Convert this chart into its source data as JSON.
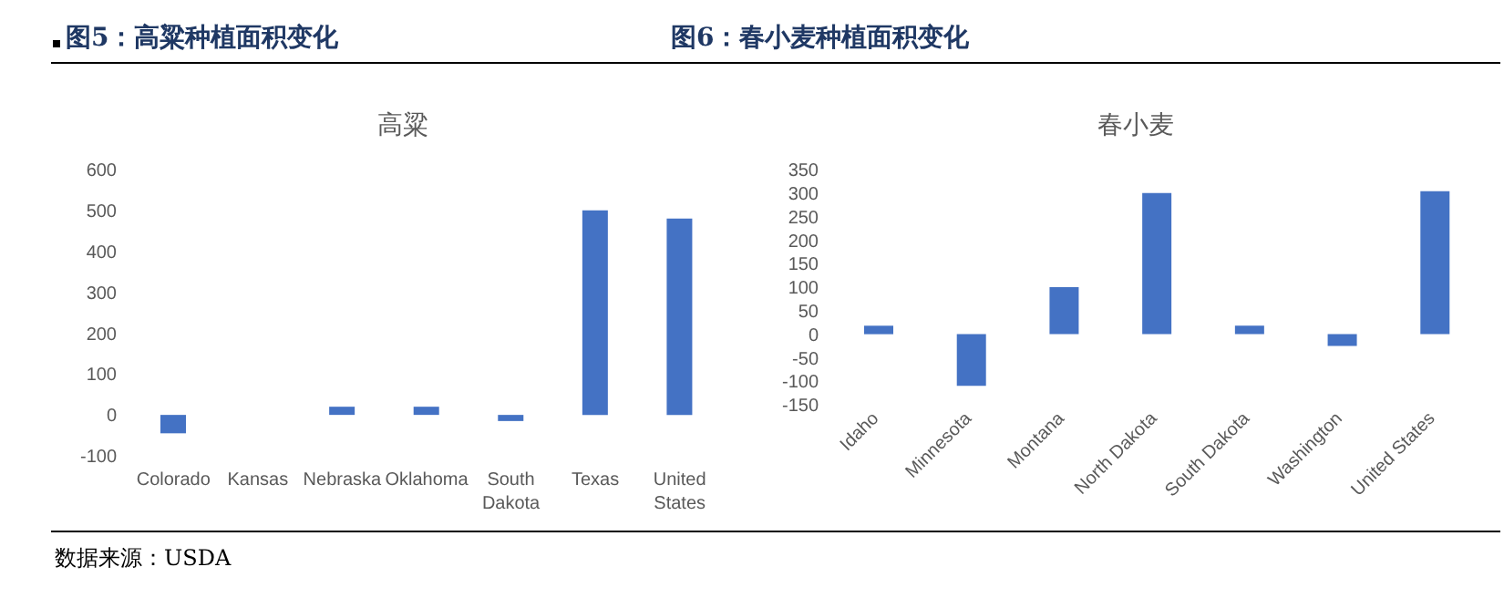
{
  "chart_data": [
    {
      "type": "bar",
      "title": "图5：高粱种植面积变化",
      "subtitle": "高粱",
      "categories": [
        "Colorado",
        "Kansas",
        "Nebraska",
        "Oklahoma",
        "South Dakota",
        "Texas",
        "United States"
      ],
      "values": [
        -45,
        0,
        20,
        20,
        -15,
        500,
        480
      ],
      "color": "#4472c4",
      "ylim": [
        -100,
        600
      ],
      "yticks": [
        -100,
        0,
        100,
        200,
        300,
        400,
        500,
        600
      ],
      "grid": false,
      "legend": false,
      "annotations": [
        "数据来源：USDA"
      ]
    },
    {
      "type": "bar",
      "title": "图6：春小麦种植面积变化",
      "subtitle": "春小麦",
      "categories": [
        "Idaho",
        "Minnesota",
        "Montana",
        "North Dakota",
        "South Dakota",
        "Washington",
        "United States"
      ],
      "values": [
        18,
        -110,
        100,
        300,
        18,
        -25,
        304
      ],
      "color": "#4472c4",
      "ylim": [
        -150,
        350
      ],
      "yticks": [
        -150,
        -100,
        -50,
        0,
        50,
        100,
        150,
        200,
        250,
        300,
        350
      ],
      "grid": false,
      "legend": false
    }
  ]
}
